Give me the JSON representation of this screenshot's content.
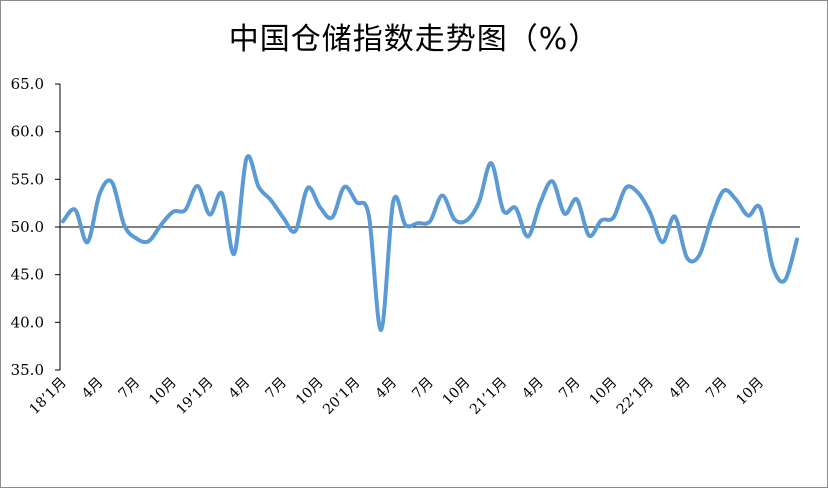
{
  "chart_data": {
    "type": "line",
    "title": "中国仓储指数走势图（%）",
    "ylim": [
      35,
      65
    ],
    "yticks": [
      "35.0",
      "40.0",
      "45.0",
      "50.0",
      "55.0",
      "60.0",
      "65.0"
    ],
    "reference_line": 50,
    "color": "#5b9bd5",
    "x_labels": [
      {
        "index": 0,
        "label": "18’1月"
      },
      {
        "index": 3,
        "label": "4月"
      },
      {
        "index": 6,
        "label": "7月"
      },
      {
        "index": 9,
        "label": "10月"
      },
      {
        "index": 12,
        "label": "19’1月"
      },
      {
        "index": 15,
        "label": "4月"
      },
      {
        "index": 18,
        "label": "7月"
      },
      {
        "index": 21,
        "label": "10月"
      },
      {
        "index": 24,
        "label": "20’1月"
      },
      {
        "index": 27,
        "label": "4月"
      },
      {
        "index": 30,
        "label": "7月"
      },
      {
        "index": 33,
        "label": "10月"
      },
      {
        "index": 36,
        "label": "21’1月"
      },
      {
        "index": 39,
        "label": "4月"
      },
      {
        "index": 42,
        "label": "7月"
      },
      {
        "index": 45,
        "label": "10月"
      },
      {
        "index": 48,
        "label": "22’1月"
      },
      {
        "index": 51,
        "label": "4月"
      },
      {
        "index": 54,
        "label": "7月"
      },
      {
        "index": 57,
        "label": "10月"
      }
    ],
    "series": [
      {
        "values": [
          50.6,
          51.8,
          48.4,
          53.5,
          54.7,
          50.2,
          48.8,
          48.5,
          50.2,
          51.6,
          51.8,
          54.3,
          51.3,
          53.5,
          47.2,
          57.2,
          54.2,
          52.8,
          51.0,
          49.6,
          54.1,
          52.1,
          51.0,
          54.2,
          52.6,
          51.2,
          39.2,
          52.7,
          50.2,
          50.4,
          50.6,
          53.3,
          50.8,
          50.7,
          52.6,
          56.7,
          51.7,
          52.0,
          49.0,
          52.5,
          54.8,
          51.4,
          52.9,
          49.1,
          50.7,
          51.0,
          54.1,
          53.6,
          51.5,
          48.4,
          51.1,
          46.8,
          47.0,
          50.9,
          53.8,
          52.9,
          51.2,
          52.0,
          45.9,
          44.4,
          48.7
        ]
      }
    ]
  }
}
